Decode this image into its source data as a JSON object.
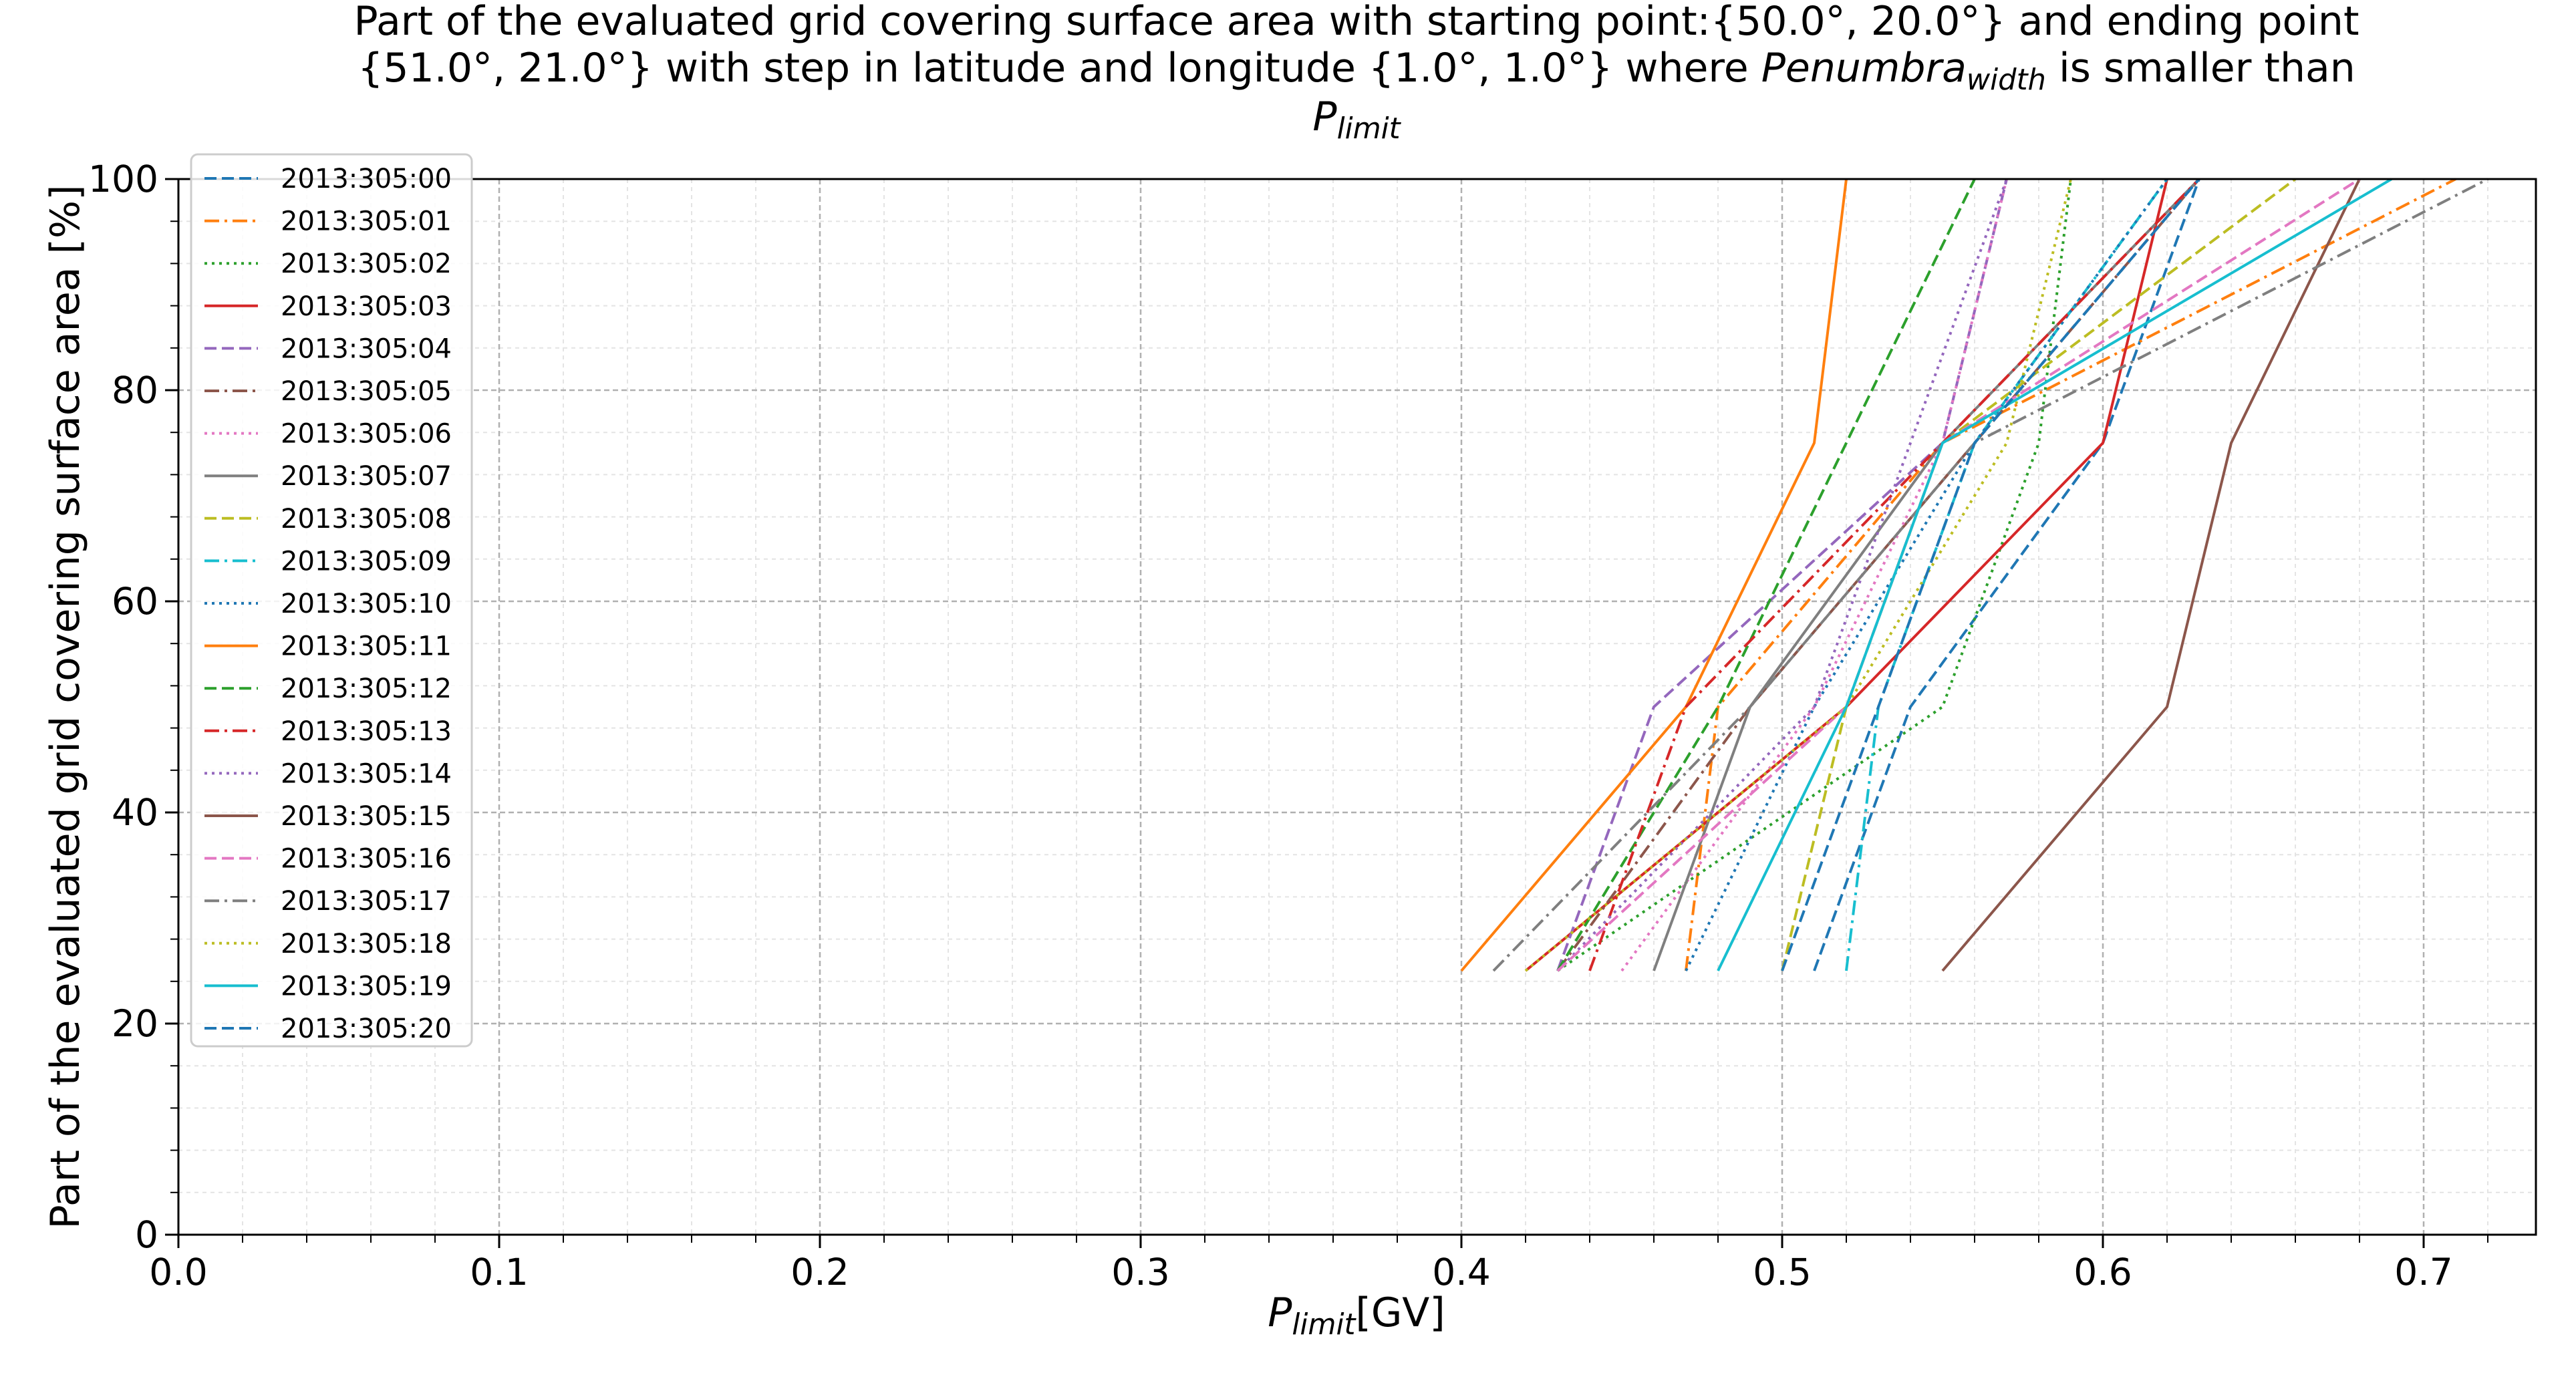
{
  "chart_data": {
    "type": "line",
    "title_lines": [
      "Part of the evaluated grid covering surface area with starting point:{50.0°, 20.0°} and ending point",
      "{51.0°, 21.0°} with step in latitude and longitude {1.0°, 1.0°} where Penumbrawidth is smaller than",
      "Plimit"
    ],
    "xlabel": "Plimit[GV]",
    "ylabel": "Part of the evaluated grid covering surface area  [%]",
    "xlim": [
      0.0,
      0.735
    ],
    "ylim": [
      0,
      100
    ],
    "xticks": [
      "0.0",
      "0.1",
      "0.2",
      "0.3",
      "0.4",
      "0.5",
      "0.6",
      "0.7"
    ],
    "yticks": [
      "0",
      "20",
      "40",
      "60",
      "80",
      "100"
    ],
    "grid": true,
    "legend_position": "upper-left",
    "series": [
      {
        "name": "2013:305:00",
        "color": "#1f77b4",
        "dash": "dashed",
        "x": [
          0.51,
          0.54,
          0.6,
          0.63
        ],
        "y": [
          25,
          50,
          75,
          100
        ]
      },
      {
        "name": "2013:305:01",
        "color": "#ff7f0e",
        "dash": "dashdot",
        "x": [
          0.47,
          0.48,
          0.55,
          0.71
        ],
        "y": [
          25,
          50,
          75,
          100
        ]
      },
      {
        "name": "2013:305:02",
        "color": "#2ca02c",
        "dash": "dotted",
        "x": [
          0.43,
          0.55,
          0.58,
          0.59
        ],
        "y": [
          25,
          50,
          75,
          100
        ]
      },
      {
        "name": "2013:305:03",
        "color": "#d62728",
        "dash": "solid",
        "x": [
          0.42,
          0.52,
          0.6,
          0.62
        ],
        "y": [
          25,
          50,
          75,
          100
        ]
      },
      {
        "name": "2013:305:04",
        "color": "#9467bd",
        "dash": "dashed",
        "x": [
          0.43,
          0.46,
          0.55,
          0.57
        ],
        "y": [
          25,
          50,
          75,
          100
        ]
      },
      {
        "name": "2013:305:05",
        "color": "#8c564b",
        "dash": "dashdot",
        "x": [
          0.43,
          0.49,
          0.56,
          0.63
        ],
        "y": [
          25,
          50,
          75,
          100
        ]
      },
      {
        "name": "2013:305:06",
        "color": "#e377c2",
        "dash": "dotted",
        "x": [
          0.45,
          0.51,
          0.55,
          0.57
        ],
        "y": [
          25,
          50,
          75,
          100
        ]
      },
      {
        "name": "2013:305:07",
        "color": "#7f7f7f",
        "dash": "solid",
        "x": [
          0.46,
          0.49,
          0.55,
          0.63
        ],
        "y": [
          25,
          50,
          75,
          100
        ]
      },
      {
        "name": "2013:305:08",
        "color": "#bcbd22",
        "dash": "dashed",
        "x": [
          0.5,
          0.52,
          0.55,
          0.66
        ],
        "y": [
          25,
          50,
          75,
          100
        ]
      },
      {
        "name": "2013:305:09",
        "color": "#17becf",
        "dash": "dashdot",
        "x": [
          0.52,
          0.53,
          0.56,
          0.62
        ],
        "y": [
          25,
          50,
          75,
          100
        ]
      },
      {
        "name": "2013:305:10",
        "color": "#1f77b4",
        "dash": "dotted",
        "x": [
          0.47,
          0.51,
          0.56,
          0.62
        ],
        "y": [
          25,
          50,
          75,
          100
        ]
      },
      {
        "name": "2013:305:11",
        "color": "#ff7f0e",
        "dash": "solid",
        "x": [
          0.4,
          0.47,
          0.51,
          0.52
        ],
        "y": [
          25,
          50,
          75,
          100
        ]
      },
      {
        "name": "2013:305:12",
        "color": "#2ca02c",
        "dash": "dashed",
        "x": [
          0.43,
          0.48,
          0.52,
          0.56
        ],
        "y": [
          25,
          50,
          75,
          100
        ]
      },
      {
        "name": "2013:305:13",
        "color": "#d62728",
        "dash": "dashdot",
        "x": [
          0.44,
          0.47,
          0.55,
          0.63
        ],
        "y": [
          25,
          50,
          75,
          100
        ]
      },
      {
        "name": "2013:305:14",
        "color": "#9467bd",
        "dash": "dotted",
        "x": [
          0.43,
          0.51,
          0.54,
          0.57
        ],
        "y": [
          25,
          50,
          75,
          100
        ]
      },
      {
        "name": "2013:305:15",
        "color": "#8c564b",
        "dash": "solid",
        "x": [
          0.55,
          0.62,
          0.64,
          0.68
        ],
        "y": [
          25,
          50,
          75,
          100
        ]
      },
      {
        "name": "2013:305:16",
        "color": "#e377c2",
        "dash": "dashed",
        "x": [
          0.43,
          0.52,
          0.55,
          0.68
        ],
        "y": [
          25,
          50,
          75,
          100
        ]
      },
      {
        "name": "2013:305:17",
        "color": "#7f7f7f",
        "dash": "dashdot",
        "x": [
          0.41,
          0.49,
          0.56,
          0.72
        ],
        "y": [
          25,
          50,
          75,
          100
        ]
      },
      {
        "name": "2013:305:18",
        "color": "#bcbd22",
        "dash": "dotted",
        "x": [
          0.42,
          0.52,
          0.57,
          0.59
        ],
        "y": [
          25,
          50,
          75,
          100
        ]
      },
      {
        "name": "2013:305:19",
        "color": "#17becf",
        "dash": "solid",
        "x": [
          0.48,
          0.52,
          0.55,
          0.69
        ],
        "y": [
          25,
          50,
          75,
          100
        ]
      },
      {
        "name": "2013:305:20",
        "color": "#1f77b4",
        "dash": "dashed",
        "x": [
          0.5,
          0.53,
          0.56,
          0.63
        ],
        "y": [
          25,
          50,
          75,
          100
        ]
      }
    ]
  }
}
